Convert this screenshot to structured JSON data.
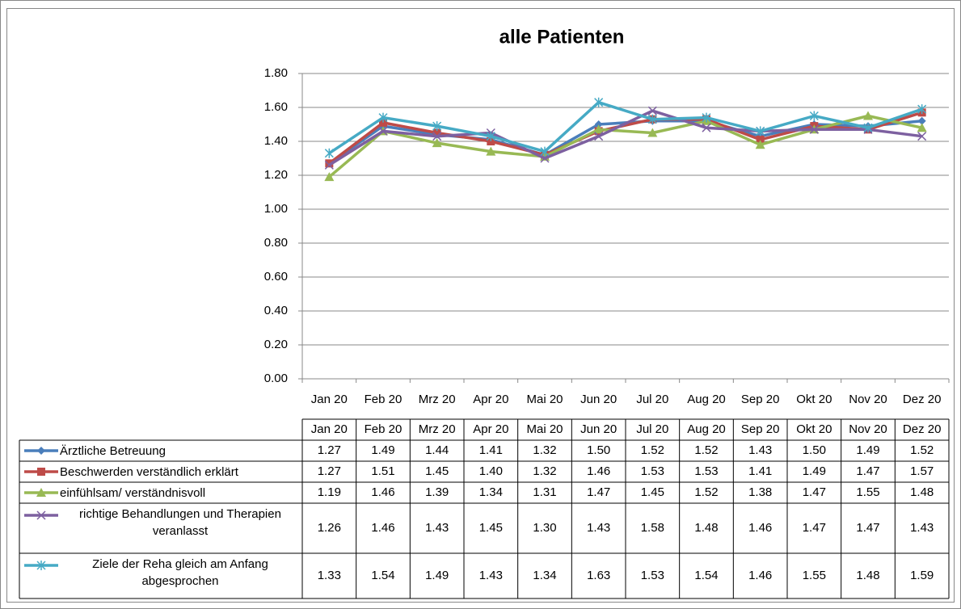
{
  "chart_data": {
    "type": "line",
    "title": "alle Patienten",
    "categories": [
      "Jan 20",
      "Feb 20",
      "Mrz 20",
      "Apr 20",
      "Mai 20",
      "Jun 20",
      "Jul 20",
      "Aug 20",
      "Sep 20",
      "Okt 20",
      "Nov 20",
      "Dez 20"
    ],
    "ylim": [
      0,
      1.8
    ],
    "yticks": [
      {
        "value": 0,
        "label": "0.00"
      },
      {
        "value": 0.2,
        "label": "0.20"
      },
      {
        "value": 0.4,
        "label": "0.40"
      },
      {
        "value": 0.6,
        "label": "0.60"
      },
      {
        "value": 0.8,
        "label": "0.80"
      },
      {
        "value": 1,
        "label": "1.00"
      },
      {
        "value": 1.2,
        "label": "1.20"
      },
      {
        "value": 1.4,
        "label": "1.40"
      },
      {
        "value": 1.6,
        "label": "1.60"
      },
      {
        "value": 1.8,
        "label": "1.80"
      }
    ],
    "grid": true,
    "series": [
      {
        "name": "Ärztliche Betreuung",
        "color": "#4a7ebb",
        "marker": "diamond",
        "values": [
          1.27,
          1.49,
          1.44,
          1.41,
          1.32,
          1.5,
          1.52,
          1.52,
          1.43,
          1.5,
          1.49,
          1.52
        ],
        "value_labels": [
          "1.27",
          "1.49",
          "1.44",
          "1.41",
          "1.32",
          "1.50",
          "1.52",
          "1.52",
          "1.43",
          "1.50",
          "1.49",
          "1.52"
        ]
      },
      {
        "name": "Beschwerden verständlich erklärt",
        "color": "#be4b48",
        "marker": "square",
        "values": [
          1.27,
          1.51,
          1.45,
          1.4,
          1.32,
          1.46,
          1.53,
          1.53,
          1.41,
          1.49,
          1.47,
          1.57
        ],
        "value_labels": [
          "1.27",
          "1.51",
          "1.45",
          "1.40",
          "1.32",
          "1.46",
          "1.53",
          "1.53",
          "1.41",
          "1.49",
          "1.47",
          "1.57"
        ]
      },
      {
        "name": "einfühlsam/ verständnisvoll",
        "color": "#98b954",
        "marker": "triangle",
        "values": [
          1.19,
          1.46,
          1.39,
          1.34,
          1.31,
          1.47,
          1.45,
          1.52,
          1.38,
          1.47,
          1.55,
          1.48
        ],
        "value_labels": [
          "1.19",
          "1.46",
          "1.39",
          "1.34",
          "1.31",
          "1.47",
          "1.45",
          "1.52",
          "1.38",
          "1.47",
          "1.55",
          "1.48"
        ]
      },
      {
        "name": "richtige Behandlungen und Therapien veranlasst",
        "color": "#7d60a0",
        "marker": "x",
        "values": [
          1.26,
          1.46,
          1.43,
          1.45,
          1.3,
          1.43,
          1.58,
          1.48,
          1.46,
          1.47,
          1.47,
          1.43
        ],
        "value_labels": [
          "1.26",
          "1.46",
          "1.43",
          "1.45",
          "1.30",
          "1.43",
          "1.58",
          "1.48",
          "1.46",
          "1.47",
          "1.47",
          "1.43"
        ]
      },
      {
        "name": "Ziele der Reha gleich am Anfang abgesprochen",
        "color": "#46aac5",
        "marker": "star",
        "values": [
          1.33,
          1.54,
          1.49,
          1.43,
          1.34,
          1.63,
          1.53,
          1.54,
          1.46,
          1.55,
          1.48,
          1.59
        ],
        "value_labels": [
          "1.33",
          "1.54",
          "1.49",
          "1.43",
          "1.34",
          "1.63",
          "1.53",
          "1.54",
          "1.46",
          "1.55",
          "1.48",
          "1.59"
        ]
      }
    ]
  }
}
